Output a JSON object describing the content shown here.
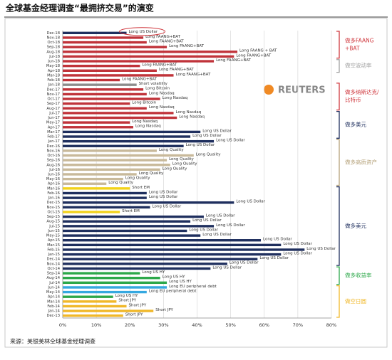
{
  "chart_data": {
    "type": "barh",
    "title": "全球基金经理调查“最拥挤交易”的演变",
    "source": "来源：美银美林全球基金经理调查",
    "logo": "REUTERS",
    "categories": [
      "Dec-18",
      "Nov-18",
      "Oct-18",
      "Sep-18",
      "Aug-18",
      "Jul-18",
      "Jun-18",
      "May-18",
      "Apr-18",
      "Mar-18",
      "Feb-18",
      "Jan-18",
      "Dec-17",
      "Nov-17",
      "Oct-17",
      "Sep-17",
      "Aug-17",
      "Jul-17",
      "Jun-17",
      "May-17",
      "Apr-17",
      "Mar-17",
      "Feb-17",
      "Jan-17",
      "Dec-16",
      "Nov-16",
      "Oct-16",
      "Sep-16",
      "Aug-16",
      "Jul-16",
      "Jun-16",
      "May-16",
      "Apr-16",
      "Mar-16",
      "Feb-16",
      "Jan-16",
      "Dec-15",
      "Nov-15",
      "Oct-15",
      "Sep-15",
      "Aug-15",
      "Jul-15",
      "Jun-15",
      "May-15",
      "Apr-15",
      "Mar-15",
      "Feb-15",
      "Jan-15",
      "Dec-14",
      "Nov-14",
      "Oct-14",
      "Sep-14",
      "Aug-14",
      "Jul-14",
      "Jun-14",
      "May-14",
      "Apr-14",
      "Mar-14",
      "Feb-14",
      "Jan-14",
      "Dec-13"
    ],
    "values": [
      19,
      24,
      25,
      31,
      52,
      51,
      45,
      23,
      28,
      33,
      17,
      22,
      24,
      25,
      29,
      20,
      25,
      33,
      34,
      20,
      21,
      41,
      38,
      45,
      36,
      28,
      39,
      31,
      32,
      29,
      22,
      18,
      13,
      20,
      25,
      25,
      51,
      26,
      17,
      42,
      38,
      45,
      37,
      41,
      59,
      65,
      72,
      65,
      58,
      49,
      44,
      23,
      29,
      31,
      31,
      25,
      15,
      16,
      19,
      27,
      18
    ],
    "labels": [
      "Long US Dollar",
      "Long FAANG+BAT",
      "Long FAANG+BAT",
      "Long FAANG+BAT",
      "Long FAANG + BAT",
      "Long FAANG+BAT",
      "Long FAANG+BAT",
      "Long FAANG+BAT",
      "Long FAANG+BAT",
      "Long FAANG+BAT",
      "Long FAANG+BAT",
      "Short volatility",
      "Long Bitcoin",
      "Long Nasdaq",
      "Long Nasdaq",
      "Long Bitcoin",
      "Long Nasdaq",
      "Long Nasdaq",
      "Long Nasdaq",
      "Long Nasdaq",
      "Long Nasdaq",
      "Long US Dollar",
      "Long US Dollar",
      "Long US Dollar",
      "Long US Dollar",
      "Long Quality",
      "Long Quality",
      "Long Quality",
      "Long Quality",
      "Long Quality",
      "Long Quality",
      "Long Quality",
      "Long Quality",
      "Short EM",
      "Long US Dollar",
      "Long US Dollar",
      "Long US Dollar",
      "Long US Dollar",
      "Short EM",
      "Long US Dollar",
      "Long US Dollar",
      "Long US Dollar",
      "Long US Dollar",
      "Long US Dollar",
      "Long US Dollar",
      "Long US Dollar",
      "Long US Dollar",
      "Long US Dollar",
      "Long US Dollar",
      "Long US Dollar",
      "Long US Dollar",
      "Long US HY",
      "Long US HY",
      "Long US HY",
      "Long EU peripheral debt",
      "Long EU peripheral debt",
      "Long US HY",
      "Short JPY",
      "Short JPY",
      "Short JPY",
      "Short JPY"
    ],
    "colors": [
      "#1f2f5e",
      "#c0333a",
      "#c0333a",
      "#c0333a",
      "#c0333a",
      "#c0333a",
      "#c0333a",
      "#c0333a",
      "#c0333a",
      "#c0333a",
      "#c0333a",
      "#8c8c8c",
      "#c0333a",
      "#c0333a",
      "#c0333a",
      "#c0333a",
      "#c0333a",
      "#c0333a",
      "#c0333a",
      "#c0333a",
      "#c0333a",
      "#1f2f5e",
      "#1f2f5e",
      "#1f2f5e",
      "#1f2f5e",
      "#c8b99a",
      "#c8b99a",
      "#c8b99a",
      "#c8b99a",
      "#c8b99a",
      "#c8b99a",
      "#c8b99a",
      "#c8b99a",
      "#f2d21b",
      "#1f2f5e",
      "#1f2f5e",
      "#1f2f5e",
      "#1f2f5e",
      "#f2d21b",
      "#1f2f5e",
      "#1f2f5e",
      "#1f2f5e",
      "#1f2f5e",
      "#1f2f5e",
      "#1f2f5e",
      "#1f2f5e",
      "#1f2f5e",
      "#1f2f5e",
      "#1f2f5e",
      "#1f2f5e",
      "#1f2f5e",
      "#2da84a",
      "#2da84a",
      "#2da84a",
      "#35a8e0",
      "#35a8e0",
      "#2da84a",
      "#f0b82a",
      "#f0b82a",
      "#f0b82a",
      "#f0b82a"
    ],
    "xlim": [
      0,
      80
    ],
    "xticks": [
      {
        "value": 0,
        "label": "0%"
      },
      {
        "value": 10,
        "label": "10%"
      },
      {
        "value": 20,
        "label": "20%"
      },
      {
        "value": 30,
        "label": "30%"
      },
      {
        "value": 40,
        "label": "40%"
      },
      {
        "value": 50,
        "label": "50%"
      },
      {
        "value": 60,
        "label": "60%"
      },
      {
        "value": 70,
        "label": "70%"
      },
      {
        "value": 80,
        "label": "80%"
      }
    ],
    "grid": true,
    "groups": [
      {
        "lines": [
          "做多FAANG",
          "+BAT"
        ],
        "color": "#d0393f",
        "start": "Dec-18",
        "end": "Jul-18"
      },
      {
        "lines": [
          "做空波动率"
        ],
        "color": "#a0a0a0",
        "start": "Jun-18",
        "end": "Apr-18"
      },
      {
        "lines": [
          "做多纳斯达克/",
          "比特币"
        ],
        "color": "#d0393f",
        "start": "Jan-18",
        "end": "Aug-17"
      },
      {
        "lines": [
          "做多美元"
        ],
        "color": "#1f2f5e",
        "start": "Jul-17",
        "end": "Feb-17"
      },
      {
        "lines": [
          "做多高质资产"
        ],
        "color": "#b5a27a",
        "start": "Jan-17",
        "end": "Apr-16"
      },
      {
        "lines": [
          "做多美元"
        ],
        "color": "#1f2f5e",
        "start": "Mar-16",
        "end": "Nov-14"
      },
      {
        "lines": [
          "做多收益率"
        ],
        "color": "#2da84a",
        "start": "Oct-14",
        "end": "Jul-14"
      },
      {
        "lines": [
          "做空日圆"
        ],
        "color": "#f0b82a",
        "start": "Jun-14",
        "end": "Dec-13"
      }
    ]
  }
}
